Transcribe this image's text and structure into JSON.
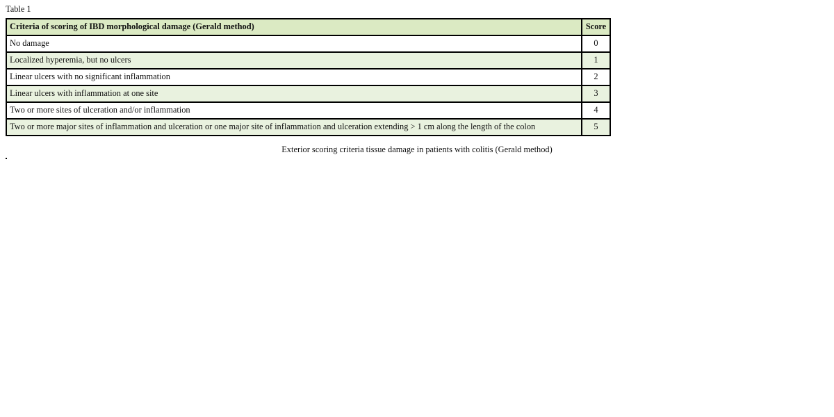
{
  "table_label": "Table 1",
  "header": {
    "criteria": "Criteria of scoring of IBD morphological damage (Gerald method)",
    "score": "Score"
  },
  "rows": [
    {
      "criteria": "No damage",
      "score": "0"
    },
    {
      "criteria": "Localized hyperemia, but no ulcers",
      "score": "1"
    },
    {
      "criteria": "Linear ulcers with no significant inflammation",
      "score": "2"
    },
    {
      "criteria": "Linear ulcers with inflammation at one site",
      "score": "3"
    },
    {
      "criteria": "Two or more sites of ulceration and/or inflammation",
      "score": "4"
    },
    {
      "criteria": "Two or more major sites of inflammation and ulceration or one major site of inflammation and ulceration extending > 1 cm along the length of the colon",
      "score": "5"
    }
  ],
  "caption": "Exterior scoring criteria tissue damage in patients with colitis (Gerald method)",
  "colors": {
    "header_bg": "#dbeac3",
    "alt_row_bg": "#e9f2df",
    "border": "#000000"
  }
}
